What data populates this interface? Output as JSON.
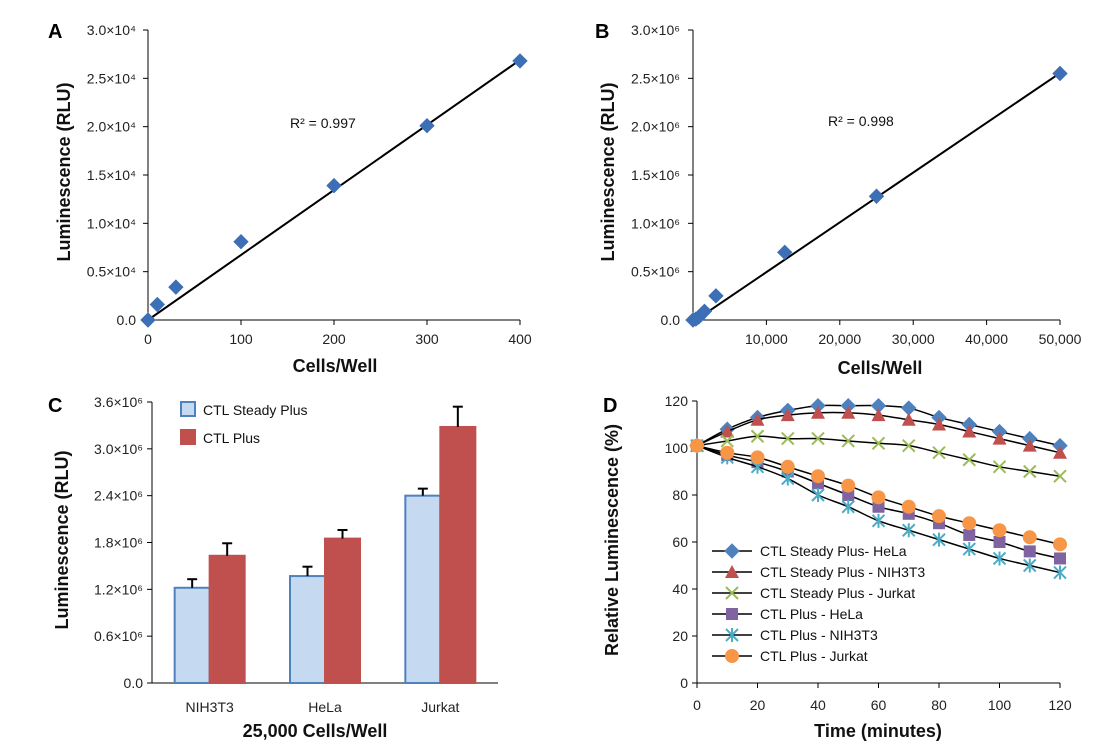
{
  "panels": {
    "A": {
      "label": "A",
      "ylabel": "Luminescence (RLU)",
      "xlabel": "Cells/Well",
      "r2_label": "R² = 0.997"
    },
    "B": {
      "label": "B",
      "ylabel": "Luminescence (RLU)",
      "xlabel": "Cells/Well",
      "r2_label": "R² = 0.998"
    },
    "C": {
      "label": "C",
      "ylabel": "Luminescence (RLU)",
      "xlabel": "25,000 Cells/Well"
    },
    "D": {
      "label": "D",
      "ylabel": "Relative Luminescence (%)",
      "xlabel": "Time (minutes)"
    }
  },
  "chart_data": [
    {
      "id": "A",
      "type": "scatter",
      "title": "",
      "xlabel": "Cells/Well",
      "ylabel": "Luminescence (RLU)",
      "xlim": [
        0,
        400
      ],
      "ylim": [
        0,
        30000
      ],
      "xticks": [
        0,
        100,
        200,
        300,
        400
      ],
      "xtick_labels": [
        "0",
        "100",
        "200",
        "300",
        "400"
      ],
      "yticks": [
        0,
        5000,
        10000,
        15000,
        20000,
        25000,
        30000
      ],
      "ytick_labels": [
        "0.0",
        "0.5×10⁴",
        "1.0×10⁴",
        "1.5×10⁴",
        "2.0×10⁴",
        "2.5×10⁴",
        "3.0×10⁴"
      ],
      "series": [
        {
          "name": "data",
          "color": "#3d6fb6",
          "marker": "diamond",
          "x": [
            0,
            10,
            30,
            100,
            200,
            300,
            400
          ],
          "y": [
            0,
            1600,
            3400,
            8100,
            13900,
            20100,
            26800
          ]
        }
      ],
      "fit": {
        "x": [
          0,
          400
        ],
        "y": [
          0,
          26900
        ]
      },
      "annotation": "R² = 0.997"
    },
    {
      "id": "B",
      "type": "scatter",
      "title": "",
      "xlabel": "Cells/Well",
      "ylabel": "Luminescence (RLU)",
      "xlim": [
        0,
        50000
      ],
      "ylim": [
        0,
        3000000
      ],
      "xticks": [
        10000,
        20000,
        30000,
        40000,
        50000
      ],
      "xtick_labels": [
        "10,000",
        "20,000",
        "30,000",
        "40,000",
        "50,000"
      ],
      "yticks": [
        0,
        500000,
        1000000,
        1500000,
        2000000,
        2500000,
        3000000
      ],
      "ytick_labels": [
        "0.0",
        "0.5×10⁶",
        "1.0×10⁶",
        "1.5×10⁶",
        "2.0×10⁶",
        "2.5×10⁶",
        "3.0×10⁶"
      ],
      "series": [
        {
          "name": "data",
          "color": "#3d6fb6",
          "marker": "diamond",
          "x": [
            0,
            390,
            780,
            1560,
            3125,
            12500,
            25000,
            50000
          ],
          "y": [
            0,
            10000,
            30000,
            90000,
            250000,
            700000,
            1280000,
            2550000
          ]
        }
      ],
      "fit": {
        "x": [
          0,
          50000
        ],
        "y": [
          -20000,
          2555000
        ]
      },
      "annotation": "R² = 0.998"
    },
    {
      "id": "C",
      "type": "bar",
      "title": "",
      "xlabel": "25,000 Cells/Well",
      "ylabel": "Luminescence (RLU)",
      "categories": [
        "NIH3T3",
        "HeLa",
        "Jurkat"
      ],
      "ylim": [
        0,
        3600000
      ],
      "yticks": [
        0,
        600000,
        1200000,
        1800000,
        2400000,
        3000000,
        3600000
      ],
      "ytick_labels": [
        "0.0",
        "0.6×10⁶",
        "1.2×10⁶",
        "1.8×10⁶",
        "2.4×10⁶",
        "3.0×10⁶",
        "3.6×10⁶"
      ],
      "legend": "top-left",
      "series": [
        {
          "name": "CTL Steady Plus",
          "fill": "#c5d9f1",
          "stroke": "#4f81bd",
          "values": [
            1220000,
            1370000,
            2400000
          ],
          "errors": [
            110000,
            120000,
            90000
          ]
        },
        {
          "name": "CTL Plus",
          "fill": "#c0504d",
          "stroke": "#c0504d",
          "values": [
            1630000,
            1850000,
            3280000
          ],
          "errors": [
            160000,
            110000,
            260000
          ]
        }
      ]
    },
    {
      "id": "D",
      "type": "line",
      "title": "",
      "xlabel": "Time (minutes)",
      "ylabel": "Relative Luminescence (%)",
      "x": [
        0,
        10,
        20,
        30,
        40,
        50,
        60,
        70,
        80,
        90,
        100,
        110,
        120
      ],
      "xlim": [
        0,
        120
      ],
      "ylim": [
        0,
        120
      ],
      "xticks": [
        0,
        20,
        40,
        60,
        80,
        100,
        120
      ],
      "yticks": [
        0,
        20,
        40,
        60,
        80,
        100,
        120
      ],
      "legend": "bottom-left",
      "series": [
        {
          "name": "CTL Steady Plus- HeLa",
          "color": "#4f81bd",
          "marker": "diamond",
          "values": [
            101,
            108,
            113,
            116,
            118,
            118,
            118,
            117,
            113,
            110,
            107,
            104,
            101
          ]
        },
        {
          "name": "CTL Steady Plus - NIH3T3",
          "color": "#c0504d",
          "marker": "triangle",
          "values": [
            101,
            107,
            112,
            114,
            115,
            115,
            114,
            112,
            110,
            107,
            104,
            101,
            98
          ]
        },
        {
          "name": "CTL Steady Plus - Jurkat",
          "color": "#9bbb59",
          "marker": "x",
          "values": [
            101,
            103,
            105,
            104,
            104,
            103,
            102,
            101,
            98,
            95,
            92,
            90,
            88
          ]
        },
        {
          "name": "CTL Plus - HeLa",
          "color": "#8064a2",
          "marker": "square",
          "values": [
            101,
            97,
            94,
            90,
            85,
            80,
            75,
            72,
            68,
            63,
            60,
            56,
            53
          ]
        },
        {
          "name": "CTL Plus - NIH3T3",
          "color": "#4bacc6",
          "marker": "star",
          "values": [
            101,
            96,
            92,
            87,
            80,
            75,
            69,
            65,
            61,
            57,
            53,
            50,
            47
          ]
        },
        {
          "name": "CTL Plus - Jurkat",
          "color": "#f79646",
          "marker": "circle",
          "values": [
            101,
            98,
            96,
            92,
            88,
            84,
            79,
            75,
            71,
            68,
            65,
            62,
            59
          ]
        }
      ]
    }
  ]
}
